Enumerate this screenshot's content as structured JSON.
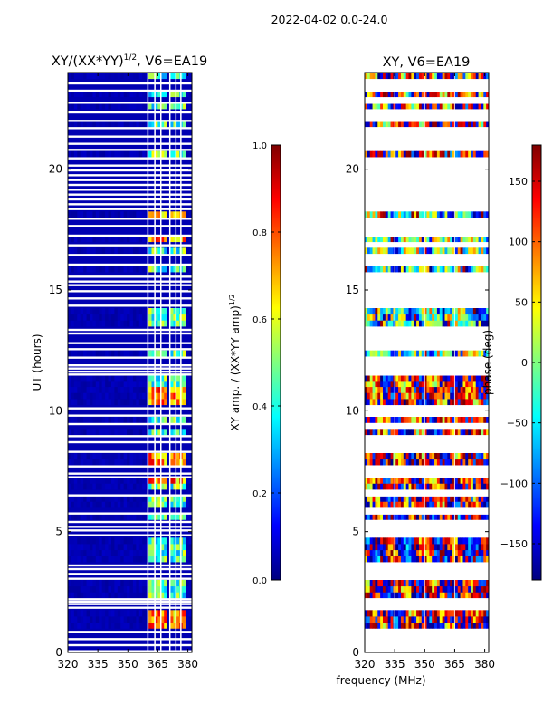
{
  "figure": {
    "suptitle": "2022-04-02 0.0-24.0",
    "shared_xlabel": "frequency (MHz)"
  },
  "colors": {
    "jet_stops": [
      "#00007f",
      "#0000ff",
      "#007fff",
      "#00ffff",
      "#7fff7f",
      "#ffff00",
      "#ff7f00",
      "#ff0000",
      "#7f0000"
    ],
    "gap": "#ffffff",
    "grid": "#ffffff"
  },
  "chart_data": [
    {
      "type": "heatmap",
      "title_main": "XY/(XX*YY)",
      "title_sup": "1/2",
      "title_rest": ", V6=EA19",
      "xlabel": "",
      "ylabel": "UT (hours)",
      "xlim": [
        320,
        382
      ],
      "ylim": [
        0,
        24
      ],
      "xticks": [
        320,
        335,
        350,
        365,
        380
      ],
      "yticks": [
        0,
        5,
        10,
        15,
        20
      ],
      "colorbar": {
        "label_main": "XY amp. / (XX*YY amp)",
        "label_sup": "1/2",
        "vmin": 0,
        "vmax": 1,
        "ticks": [
          0.0,
          0.2,
          0.4,
          0.6,
          0.8,
          1.0
        ],
        "tick_labels": [
          "0.0",
          "0.2",
          "0.4",
          "0.6",
          "0.8",
          "1.0"
        ]
      },
      "active_bands_mhz": [
        [
          360,
          363
        ],
        [
          363.5,
          366.5
        ],
        [
          366.5,
          369.5
        ],
        [
          371,
          374
        ],
        [
          374,
          376.5
        ],
        [
          376.5,
          379.5
        ]
      ],
      "band_peak_hours": [
        [
          10.0,
          11.0
        ],
        [
          7.0,
          8.5
        ],
        [
          0.8,
          2.0
        ],
        [
          17.0,
          18.5
        ]
      ],
      "background_value": 0.05,
      "band_value": 0.45,
      "peak_value": 0.75
    },
    {
      "type": "heatmap",
      "title_main": "XY, V6=EA19",
      "xlabel": "frequency (MHz)",
      "ylabel": "",
      "xlim": [
        320,
        382
      ],
      "ylim": [
        0,
        24
      ],
      "xticks": [
        320,
        335,
        350,
        365,
        380
      ],
      "yticks": [
        0,
        5,
        10,
        15,
        20
      ],
      "colorbar": {
        "label_main": "phase (deg)",
        "vmin": -180,
        "vmax": 180,
        "ticks": [
          -150,
          -100,
          -50,
          0,
          50,
          100,
          150
        ],
        "tick_labels": [
          "−150",
          "−100",
          "−50",
          "0",
          "50",
          "100",
          "150"
        ]
      },
      "phase_bands": [
        {
          "hours": [
            0,
            3
          ],
          "dominant_deg": 150
        },
        {
          "hours": [
            3,
            6
          ],
          "dominant_deg": 170
        },
        {
          "hours": [
            6,
            11.5
          ],
          "dominant_deg": 140
        },
        {
          "hours": [
            11.5,
            18.5
          ],
          "dominant_deg": -60
        },
        {
          "hours": [
            18.5,
            24
          ],
          "dominant_deg": 120
        }
      ]
    }
  ],
  "missing_hours": [
    0.05,
    0.3,
    0.55,
    0.85,
    1.85,
    2.0,
    2.1,
    2.2,
    3.05,
    3.25,
    3.45,
    3.6,
    4.85,
    5.05,
    5.2,
    5.4,
    5.75,
    6.5,
    7.25,
    7.4,
    7.7,
    8.3,
    8.7,
    8.95,
    9.45,
    9.8,
    10.1,
    11.5,
    11.62,
    11.75,
    11.88,
    12.2,
    12.55,
    12.8,
    13.2,
    13.35,
    14.35,
    14.65,
    14.95,
    15.2,
    15.35,
    15.55,
    16.05,
    16.45,
    16.85,
    17.25,
    17.65,
    17.95,
    18.35,
    18.55,
    18.75,
    18.95,
    19.15,
    19.35,
    19.55,
    19.75,
    19.95,
    20.15,
    20.45,
    20.8,
    21.05,
    21.35,
    21.7,
    22.0,
    22.35,
    22.75,
    23.25,
    23.55
  ]
}
